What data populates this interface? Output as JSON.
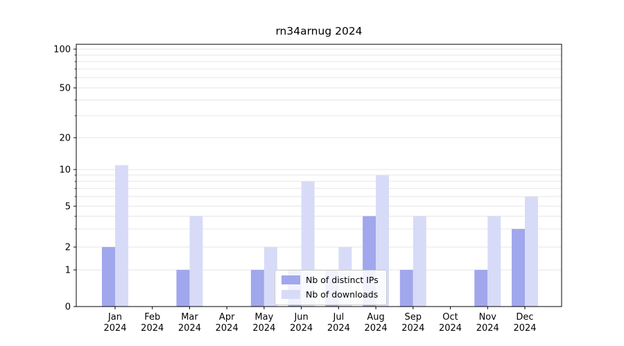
{
  "title": "rn34arnug 2024",
  "chart_data": {
    "type": "bar",
    "title": "rn34arnug 2024",
    "categories": [
      "Jan 2024",
      "Feb 2024",
      "Mar 2024",
      "Apr 2024",
      "May 2024",
      "Jun 2024",
      "Jul 2024",
      "Aug 2024",
      "Sep 2024",
      "Oct 2024",
      "Nov 2024",
      "Dec 2024"
    ],
    "x_axis": {
      "months": [
        "Jan",
        "Feb",
        "Mar",
        "Apr",
        "May",
        "Jun",
        "Jul",
        "Aug",
        "Sep",
        "Oct",
        "Nov",
        "Dec"
      ],
      "year": "2024"
    },
    "series": [
      {
        "name": "Nb of distinct IPs",
        "color": "#a1a7ec",
        "values": [
          2,
          0,
          1,
          0,
          1,
          1,
          1,
          4,
          1,
          0,
          1,
          3
        ]
      },
      {
        "name": "Nb of downloads",
        "color": "#d8dbf7",
        "values": [
          11,
          0,
          4,
          0,
          2,
          8,
          2,
          9,
          4,
          0,
          4,
          6
        ]
      }
    ],
    "y_axis": {
      "scale": "symlog",
      "ticks": [
        0,
        1,
        2,
        5,
        10,
        20,
        50,
        100
      ],
      "minor_gridlines": [
        3,
        4,
        6,
        7,
        8,
        9,
        30,
        40,
        60,
        70,
        80,
        90
      ],
      "range": [
        0,
        100
      ]
    },
    "grid": true,
    "legend_position": "lower center"
  },
  "colors": {
    "grid": "#e6e6e6",
    "spine": "#000000",
    "background": "#ffffff"
  }
}
